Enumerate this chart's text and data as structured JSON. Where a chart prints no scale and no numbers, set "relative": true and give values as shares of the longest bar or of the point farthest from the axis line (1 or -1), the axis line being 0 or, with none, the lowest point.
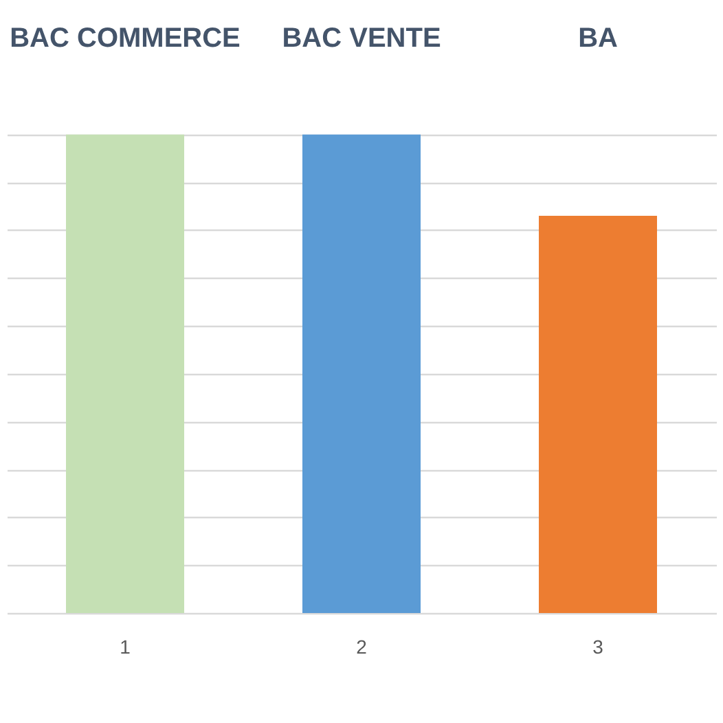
{
  "chart_data": {
    "type": "bar",
    "categories": [
      "1",
      "2",
      "3"
    ],
    "values": [
      1,
      1,
      0.83
    ],
    "colors": [
      "#c5e0b4",
      "#5b9bd5",
      "#ed7d31"
    ],
    "relative": true,
    "grid": "y",
    "annotations": [
      "BAC COMMERCE",
      "BAC VENTE",
      "BA"
    ]
  }
}
